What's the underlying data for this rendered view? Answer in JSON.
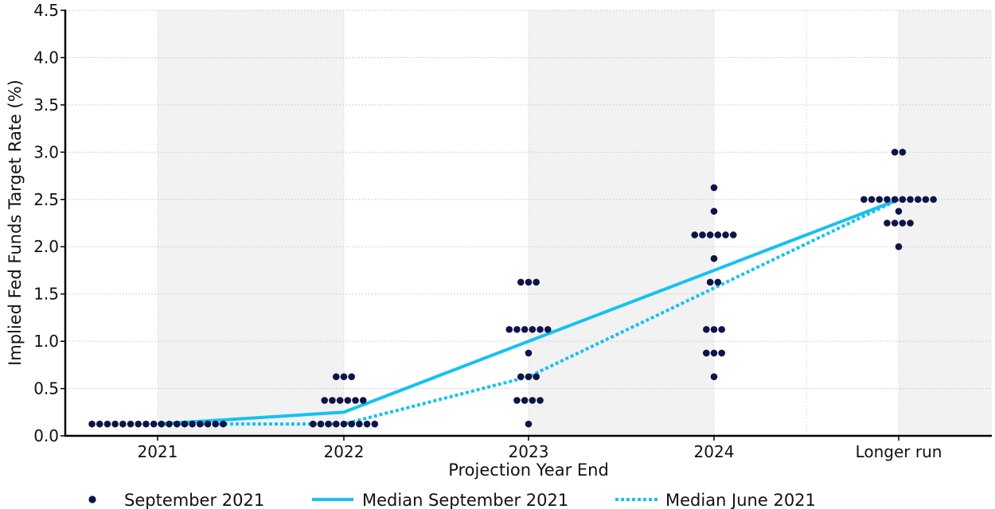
{
  "chart_data": {
    "type": "scatter",
    "xlabel": "Projection Year End",
    "ylabel": "Implied Fed Funds Target Rate (%)",
    "categories": [
      "2021",
      "2022",
      "2023",
      "2024",
      "Longer run"
    ],
    "ylim": [
      0,
      4.5
    ],
    "yticks": [
      "0.0",
      "0.5",
      "1.0",
      "1.5",
      "2.0",
      "2.5",
      "3.0",
      "3.5",
      "4.0",
      "4.5"
    ],
    "grid": true,
    "legend_position": "bottom",
    "dots": {
      "name": "September 2021",
      "color": "#0d1446",
      "groups": [
        {
          "category": "2021",
          "levels": [
            {
              "value": 0.125,
              "count": 18
            }
          ]
        },
        {
          "category": "2022",
          "levels": [
            {
              "value": 0.125,
              "count": 9
            },
            {
              "value": 0.375,
              "count": 6
            },
            {
              "value": 0.625,
              "count": 3
            }
          ]
        },
        {
          "category": "2023",
          "levels": [
            {
              "value": 0.125,
              "count": 1
            },
            {
              "value": 0.375,
              "count": 4
            },
            {
              "value": 0.625,
              "count": 3
            },
            {
              "value": 0.875,
              "count": 1
            },
            {
              "value": 1.125,
              "count": 6
            },
            {
              "value": 1.625,
              "count": 3
            }
          ]
        },
        {
          "category": "2024",
          "levels": [
            {
              "value": 0.625,
              "count": 1
            },
            {
              "value": 0.875,
              "count": 3
            },
            {
              "value": 1.125,
              "count": 3
            },
            {
              "value": 1.625,
              "count": 2
            },
            {
              "value": 1.875,
              "count": 1
            },
            {
              "value": 2.125,
              "count": 6
            },
            {
              "value": 2.375,
              "count": 1
            },
            {
              "value": 2.625,
              "count": 1
            }
          ]
        },
        {
          "category": "Longer run",
          "levels": [
            {
              "value": 2.0,
              "count": 1
            },
            {
              "value": 2.25,
              "count": 4
            },
            {
              "value": 2.375,
              "count": 1
            },
            {
              "value": 2.5,
              "count": 10
            },
            {
              "value": 3.0,
              "count": 2
            }
          ]
        }
      ]
    },
    "series": [
      {
        "name": "Median September 2021",
        "style": "solid",
        "color": "#17c1f0",
        "values": [
          0.125,
          0.25,
          1.0,
          1.75,
          2.5
        ]
      },
      {
        "name": "Median June 2021",
        "style": "dotted",
        "color": "#17c1f0",
        "values": [
          0.125,
          0.125,
          0.625,
          1.5625,
          2.5
        ]
      }
    ],
    "legend": [
      "September 2021",
      "Median September 2021",
      "Median June 2021"
    ]
  }
}
